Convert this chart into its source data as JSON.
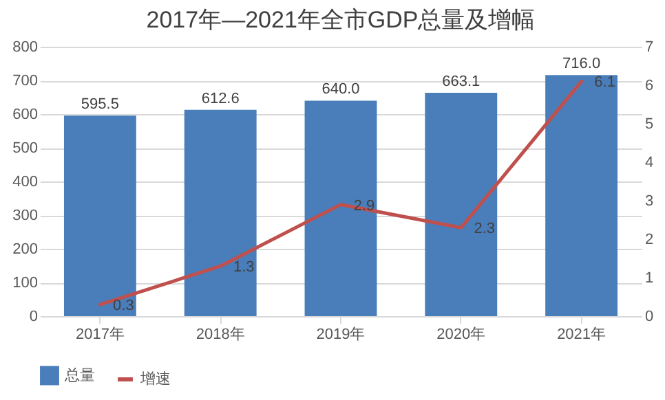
{
  "chart_data": {
    "type": "bar",
    "title": "2017年—2021年全市GDP总量及增幅",
    "categories": [
      "2017年",
      "2018年",
      "2019年",
      "2020年",
      "2021年"
    ],
    "series": [
      {
        "name": "总量",
        "color": "#4a7ebb",
        "values": [
          595.5,
          612.6,
          640.0,
          663.1,
          716.0
        ],
        "value_labels": [
          "595.5",
          "612.6",
          "640.0",
          "663.1",
          "716.0"
        ]
      },
      {
        "name": "增速",
        "type": "line",
        "axis": "y2",
        "color": "#c0504d",
        "values": [
          0.3,
          1.3,
          2.9,
          2.3,
          6.1
        ],
        "value_labels": [
          "0.3",
          "1.3",
          "2.9",
          "2.3",
          "6.1"
        ]
      }
    ],
    "ylim": [
      0,
      800
    ],
    "yticks": [
      0,
      100,
      200,
      300,
      400,
      500,
      600,
      700,
      800
    ],
    "y2lim": [
      0,
      7
    ],
    "y2ticks": [
      0,
      1,
      2,
      3,
      4,
      5,
      6,
      7
    ],
    "grid": "y",
    "legend": "bottom",
    "marker": "none",
    "line_style": "solid"
  }
}
